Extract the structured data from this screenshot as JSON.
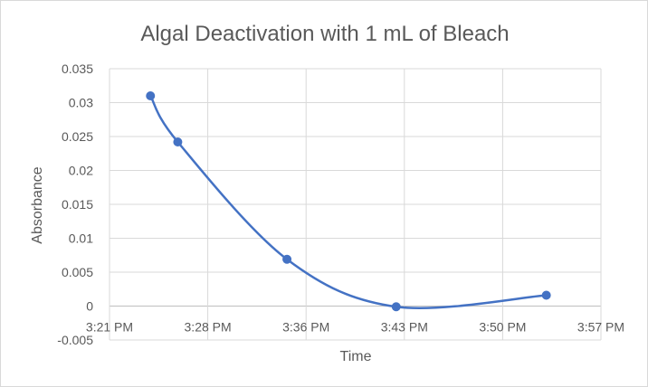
{
  "chart_data": {
    "type": "scatter",
    "title": "Algal Deactivation with 1 mL of Bleach",
    "xlabel": "Time",
    "ylabel": "Absorbance",
    "x_ticks": [
      "3:21 PM",
      "3:28 PM",
      "3:36 PM",
      "3:43 PM",
      "3:50 PM",
      "3:57 PM"
    ],
    "y_ticks": [
      "0.035",
      "0.03",
      "0.025",
      "0.02",
      "0.015",
      "0.01",
      "0.005",
      "0",
      "-0.005"
    ],
    "ylim": [
      -0.005,
      0.035
    ],
    "xlim": [
      "3:21 PM",
      "3:57 PM"
    ],
    "grid": true,
    "smooth_line": true,
    "series": [
      {
        "color": "#4472c4",
        "points": [
          {
            "x": "3:24 PM",
            "y": 0.031
          },
          {
            "x": "3:26 PM",
            "y": 0.0242
          },
          {
            "x": "3:34 PM",
            "y": 0.0069
          },
          {
            "x": "3:42 PM",
            "y": -0.0001
          },
          {
            "x": "3:53 PM",
            "y": 0.0016
          }
        ]
      }
    ]
  }
}
